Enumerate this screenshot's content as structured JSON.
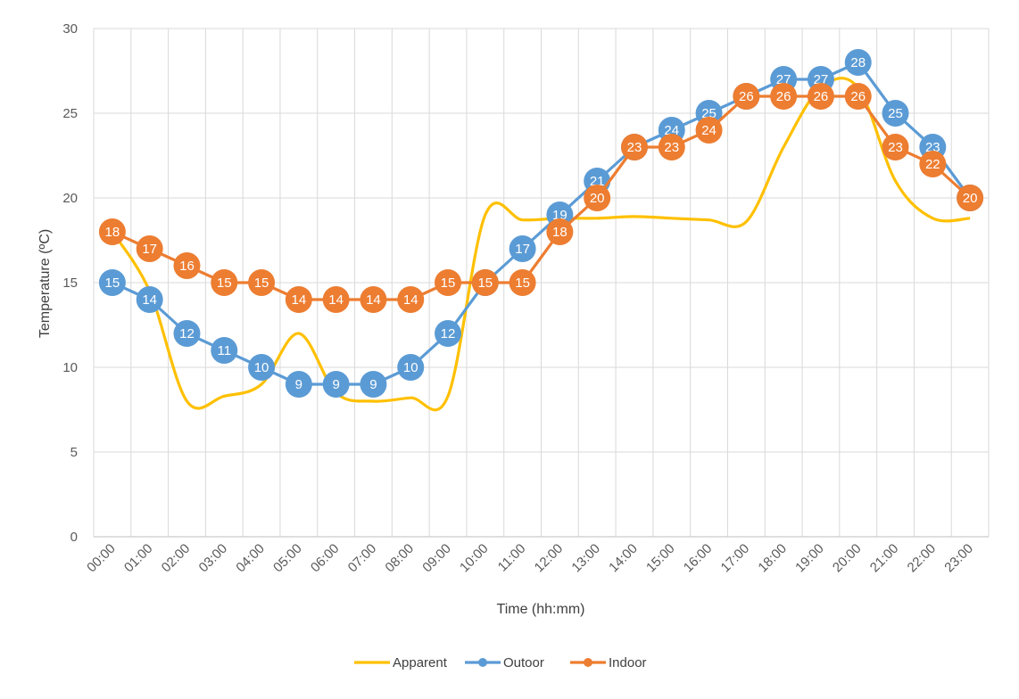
{
  "chart_data": {
    "type": "line",
    "title": "",
    "xlabel": "Time (hh:mm)",
    "ylabel": "Temperature (ºC)",
    "ylim": [
      0,
      30
    ],
    "yticks": [
      0,
      5,
      10,
      15,
      20,
      25,
      30
    ],
    "grid": true,
    "legend_position": "bottom",
    "categories": [
      "00:00",
      "01:00",
      "02:00",
      "03:00",
      "04:00",
      "05:00",
      "06:00",
      "07:00",
      "08:00",
      "09:00",
      "10:00",
      "11:00",
      "12:00",
      "13:00",
      "14:00",
      "15:00",
      "16:00",
      "17:00",
      "18:00",
      "19:00",
      "20:00",
      "21:00",
      "22:00",
      "23:00"
    ],
    "series": [
      {
        "name": "Apparent",
        "color": "#FFC000",
        "smooth": true,
        "markers": false,
        "values": [
          18,
          14.5,
          8,
          8.3,
          9,
          12,
          8.5,
          8,
          8.2,
          8.3,
          19,
          18.7,
          18.8,
          18.8,
          18.9,
          18.8,
          18.7,
          18.6,
          23,
          26.5,
          26.5,
          21,
          18.8,
          18.8
        ]
      },
      {
        "name": "Outoor",
        "color": "#5B9BD5",
        "smooth": false,
        "markers": true,
        "values": [
          15,
          14,
          12,
          11,
          10,
          9,
          9,
          9,
          10,
          12,
          15,
          17,
          19,
          21,
          23,
          24,
          25,
          26,
          27,
          27,
          28,
          25,
          23,
          20
        ]
      },
      {
        "name": "Indoor",
        "color": "#ED7D31",
        "smooth": false,
        "markers": true,
        "values": [
          18,
          17,
          16,
          15,
          15,
          14,
          14,
          14,
          14,
          15,
          15,
          15,
          18,
          20,
          23,
          23,
          24,
          26,
          26,
          26,
          26,
          23,
          22,
          20
        ]
      }
    ]
  }
}
